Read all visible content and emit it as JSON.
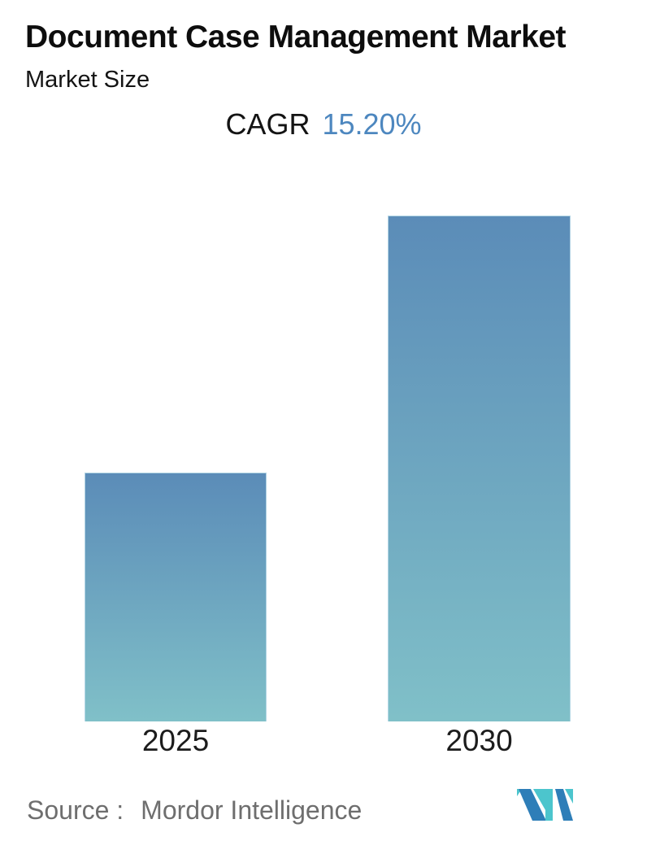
{
  "header": {
    "title": "Document Case Management Market",
    "subtitle": "Market Size",
    "cagr_label": "CAGR",
    "cagr_value": "15.20%",
    "cagr_value_color": "#4d87bf"
  },
  "chart_data": {
    "type": "bar",
    "title": "Document Case Management Market",
    "subtitle": "Market Size",
    "categories": [
      "2025",
      "2030"
    ],
    "values": [
      1.0,
      2.03
    ],
    "values_unit": "relative market size (2025 = 1.0; bars unlabeled, no numeric axis shown; 2030 = 2025 x (1 + 15.20%)^5)",
    "cagr": "15.20%",
    "xlabel": "",
    "ylabel": "",
    "grid": false,
    "legend": false,
    "axes_hidden": true,
    "bar_gradient_top": "#5b8cb8",
    "bar_gradient_bottom": "#80c0c8"
  },
  "footer": {
    "source_label": "Source :",
    "source_value": "Mordor Intelligence",
    "logo": "mordor-intelligence-logo",
    "logo_blue": "#2e7eb8",
    "logo_teal": "#4cc5cd"
  }
}
